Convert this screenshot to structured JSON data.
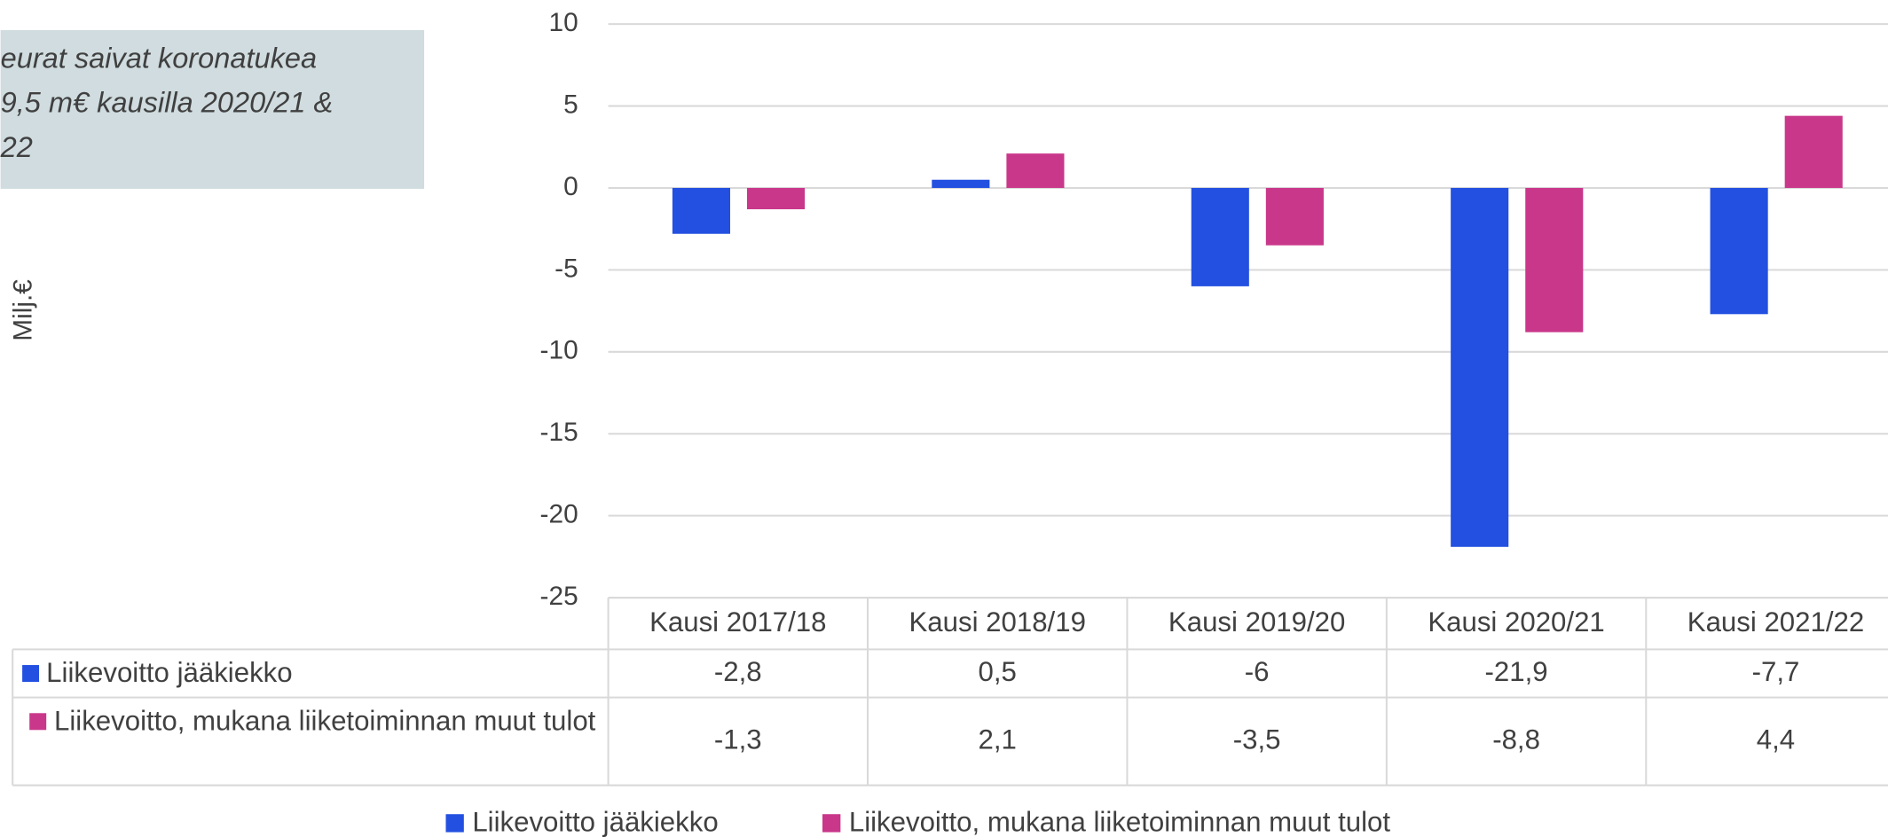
{
  "chart_data": {
    "type": "bar",
    "annotation": [
      "eurat saivat koronatukea",
      "9,5 m€ kausilla 2020/21 &",
      "22"
    ],
    "y_label": "Milj.€",
    "categories": [
      "Kausi 2017/18",
      "Kausi 2018/19",
      "Kausi 2019/20",
      "Kausi 2020/21",
      "Kausi 2021/22"
    ],
    "series": [
      {
        "name": "Liikevoitto jääkiekko",
        "color": "#2350e0",
        "values": [
          -2.8,
          0.5,
          -6,
          -21.9,
          -7.7
        ],
        "value_labels": [
          "-2,8",
          "0,5",
          "-6",
          "-21,9",
          "-7,7"
        ]
      },
      {
        "name": "Liikevoitto, mukana liiketoiminnan muut tulot",
        "color": "#c9378a",
        "values": [
          -1.3,
          2.1,
          -3.5,
          -8.8,
          4.4
        ],
        "value_labels": [
          "-1,3",
          "2,1",
          "-3,5",
          "-8,8",
          "4,4"
        ]
      }
    ],
    "ylim": [
      -25,
      10
    ],
    "yticks": [
      10,
      5,
      0,
      -5,
      -10,
      -15,
      -20,
      -25
    ],
    "grid": true
  }
}
